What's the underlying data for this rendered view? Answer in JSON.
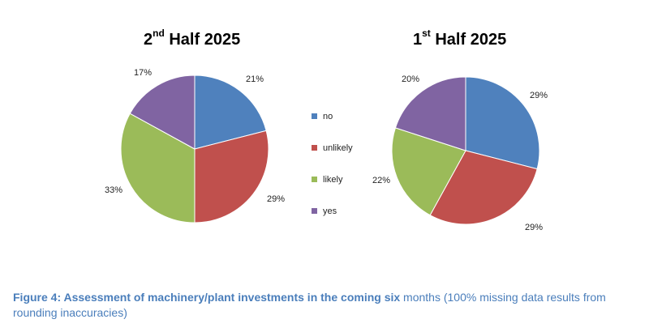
{
  "chart_data": [
    {
      "type": "pie",
      "title_main": "2",
      "title_sup": "nd",
      "title_rest": " Half 2025",
      "categories": [
        "no",
        "unlikely",
        "likely",
        "yes"
      ],
      "values": [
        21,
        29,
        33,
        17
      ],
      "labels": [
        "21%",
        "29%",
        "33%",
        "17%"
      ]
    },
    {
      "type": "pie",
      "title_main": "1",
      "title_sup": "st",
      "title_rest": " Half 2025",
      "categories": [
        "no",
        "unlikely",
        "likely",
        "yes"
      ],
      "values": [
        29,
        29,
        22,
        20
      ],
      "labels": [
        "29%",
        "29%",
        "22%",
        "20%"
      ]
    }
  ],
  "legend": {
    "items": [
      {
        "label": "no",
        "color": "#4f81bd"
      },
      {
        "label": "unlikely",
        "color": "#c0504d"
      },
      {
        "label": "likely",
        "color": "#9bbb59"
      },
      {
        "label": "yes",
        "color": "#8064a2"
      }
    ]
  },
  "caption": {
    "bold": "Figure 4: Assessment of machinery/plant investments in the coming six",
    "rest": " months (100% missing data results from rounding inaccuracies)"
  }
}
